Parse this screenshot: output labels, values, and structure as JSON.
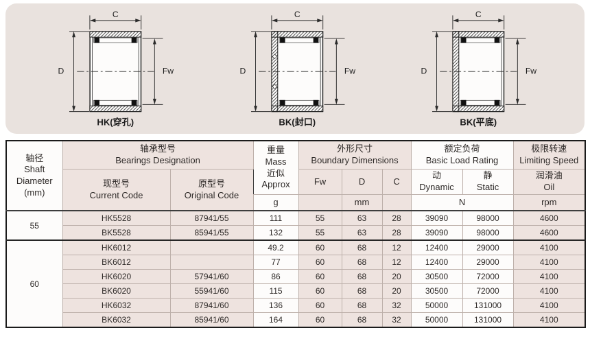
{
  "diagrams": [
    {
      "caption": "HK(穿孔)",
      "dim_width": "C",
      "dim_outer": "D",
      "dim_bore": "Fw"
    },
    {
      "caption": "BK(封口)",
      "dim_width": "C",
      "dim_outer": "D",
      "dim_bore": "Fw"
    },
    {
      "caption": "BK(平底)",
      "dim_width": "C",
      "dim_outer": "D",
      "dim_bore": "Fw"
    }
  ],
  "table": {
    "headers": {
      "shaft": "轴径\nShaft\nDiameter\n(mm)",
      "designation": "轴承型号\nBearings Designation",
      "current": "现型号\nCurrent Code",
      "original": "原型号\nOriginal Code",
      "mass": "重量\nMass\n近似\nApprox",
      "mass_unit": "g",
      "boundary": "外形尺寸\nBoundary Dimensions",
      "fw": "Fw",
      "d": "D",
      "c": "C",
      "dim_unit": "mm",
      "load": "额定负荷\nBasic Load Rating",
      "dynamic": "动\nDynamic",
      "static": "静\nStatic",
      "load_unit": "N",
      "speed": "极限转速\nLimiting Speed",
      "oil": "润滑油\nOil",
      "speed_unit": "rpm"
    },
    "groups": [
      {
        "shaft": "55",
        "rows": [
          {
            "current": "HK5528",
            "original": "87941/55",
            "mass": "111",
            "fw": "55",
            "d": "63",
            "c": "28",
            "dynamic": "39090",
            "static": "98000",
            "oil": "4600"
          },
          {
            "current": "BK5528",
            "original": "85941/55",
            "mass": "132",
            "fw": "55",
            "d": "63",
            "c": "28",
            "dynamic": "39090",
            "static": "98000",
            "oil": "4600"
          }
        ]
      },
      {
        "shaft": "60",
        "rows": [
          {
            "current": "HK6012",
            "original": "",
            "mass": "49.2",
            "fw": "60",
            "d": "68",
            "c": "12",
            "dynamic": "12400",
            "static": "29000",
            "oil": "4100"
          },
          {
            "current": "BK6012",
            "original": "",
            "mass": "77",
            "fw": "60",
            "d": "68",
            "c": "12",
            "dynamic": "12400",
            "static": "29000",
            "oil": "4100"
          },
          {
            "current": "HK6020",
            "original": "57941/60",
            "mass": "86",
            "fw": "60",
            "d": "68",
            "c": "20",
            "dynamic": "30500",
            "static": "72000",
            "oil": "4100"
          },
          {
            "current": "BK6020",
            "original": "55941/60",
            "mass": "115",
            "fw": "60",
            "d": "68",
            "c": "20",
            "dynamic": "30500",
            "static": "72000",
            "oil": "4100"
          },
          {
            "current": "HK6032",
            "original": "87941/60",
            "mass": "136",
            "fw": "60",
            "d": "68",
            "c": "32",
            "dynamic": "50000",
            "static": "131000",
            "oil": "4100"
          },
          {
            "current": "BK6032",
            "original": "85941/60",
            "mass": "164",
            "fw": "60",
            "d": "68",
            "c": "32",
            "dynamic": "50000",
            "static": "131000",
            "oil": "4100"
          }
        ]
      }
    ]
  }
}
